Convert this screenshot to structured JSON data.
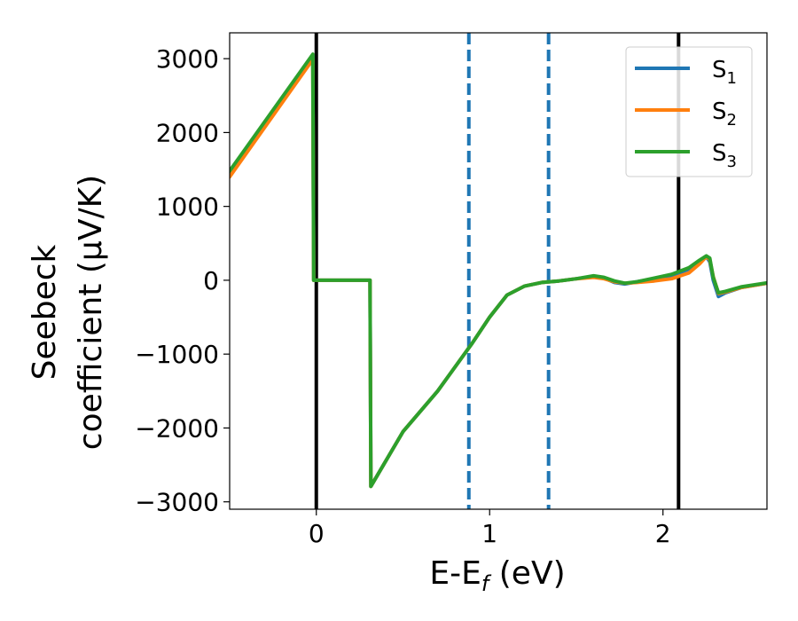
{
  "chart_data": {
    "type": "line",
    "title": "",
    "xlabel": "E-E",
    "xlabel_sub": "f",
    "xlabel_units": " (eV)",
    "ylabel_line1": "Seebeck",
    "ylabel_line2": "coefficient  (μV/K)",
    "xlim": [
      -0.5,
      2.6
    ],
    "ylim": [
      -3100,
      3350
    ],
    "xticks": [
      0,
      1,
      2
    ],
    "xtick_labels": [
      "0",
      "1",
      "2"
    ],
    "yticks": [
      -3000,
      -2000,
      -1000,
      0,
      1000,
      2000,
      3000
    ],
    "ytick_labels": [
      "−3000",
      "−2000",
      "−1000",
      "0",
      "1000",
      "2000",
      "3000"
    ],
    "grid": false,
    "legend_position": "top-right",
    "vertical_lines": [
      {
        "x": 0.0,
        "style": "solid",
        "color": "#000000"
      },
      {
        "x": 2.09,
        "style": "solid",
        "color": "#000000"
      },
      {
        "x": 0.88,
        "style": "dashed",
        "color": "#1f77b4"
      },
      {
        "x": 1.34,
        "style": "dashed",
        "color": "#1f77b4"
      }
    ],
    "series": [
      {
        "name": "S",
        "sub": "1",
        "color": "#1f77b4",
        "x": [
          -0.5,
          -0.02,
          -0.015,
          0.31,
          0.315,
          0.5,
          0.7,
          0.9,
          1.0,
          1.1,
          1.2,
          1.3,
          1.4,
          1.5,
          1.6,
          1.66,
          1.72,
          1.78,
          1.85,
          1.95,
          2.05,
          2.15,
          2.21,
          2.25,
          2.27,
          2.29,
          2.32,
          2.36,
          2.45,
          2.6
        ],
        "y": [
          1450,
          3040,
          0,
          0,
          -2790,
          -2050,
          -1500,
          -850,
          -500,
          -200,
          -80,
          -30,
          -10,
          20,
          50,
          30,
          -30,
          -50,
          -20,
          20,
          60,
          150,
          250,
          320,
          250,
          0,
          -220,
          -170,
          -100,
          -40
        ]
      },
      {
        "name": "S",
        "sub": "2",
        "color": "#ff7f0e",
        "x": [
          -0.5,
          -0.02,
          -0.015,
          0.31,
          0.315,
          0.5,
          0.7,
          0.9,
          1.0,
          1.1,
          1.2,
          1.3,
          1.4,
          1.5,
          1.6,
          1.66,
          1.72,
          1.78,
          1.85,
          1.95,
          2.05,
          2.15,
          2.21,
          2.25,
          2.27,
          2.29,
          2.32,
          2.36,
          2.45,
          2.6
        ],
        "y": [
          1400,
          2990,
          0,
          0,
          -2790,
          -2050,
          -1500,
          -850,
          -500,
          -200,
          -80,
          -30,
          -10,
          20,
          40,
          20,
          -20,
          -40,
          -30,
          -10,
          20,
          100,
          220,
          320,
          280,
          50,
          -180,
          -160,
          -100,
          -40
        ]
      },
      {
        "name": "S",
        "sub": "3",
        "color": "#2ca02c",
        "x": [
          -0.5,
          -0.02,
          -0.015,
          0.31,
          0.315,
          0.5,
          0.7,
          0.9,
          1.0,
          1.1,
          1.2,
          1.3,
          1.4,
          1.5,
          1.6,
          1.66,
          1.72,
          1.78,
          1.85,
          1.95,
          2.05,
          2.15,
          2.21,
          2.25,
          2.27,
          2.29,
          2.32,
          2.36,
          2.45,
          2.6
        ],
        "y": [
          1480,
          3060,
          0,
          0,
          -2790,
          -2050,
          -1500,
          -850,
          -500,
          -200,
          -80,
          -30,
          -10,
          20,
          60,
          40,
          -10,
          -40,
          -20,
          30,
          80,
          170,
          270,
          330,
          300,
          40,
          -170,
          -150,
          -90,
          -35
        ]
      }
    ]
  }
}
